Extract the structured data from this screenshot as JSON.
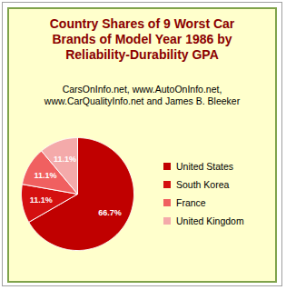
{
  "chart_data": {
    "type": "pie",
    "title": "Country Shares of 9 Worst Car Brands of Model Year 1986 by Reliability-Durability GPA",
    "subtitle": "CarsOnInfo.net, www.AutoOnInfo.net, www.CarQualityInfo.net and James B. Bleeker",
    "categories": [
      "United States",
      "South Korea",
      "France",
      "United Kingdom"
    ],
    "values": [
      66.7,
      11.1,
      11.1,
      11.1
    ],
    "value_labels": [
      "66.7%",
      "11.1%",
      "11.1%",
      "11.1%"
    ],
    "colors": [
      "#c00000",
      "#d41010",
      "#f06060",
      "#f4aaaa"
    ],
    "data_labels": true,
    "legend": "right"
  }
}
